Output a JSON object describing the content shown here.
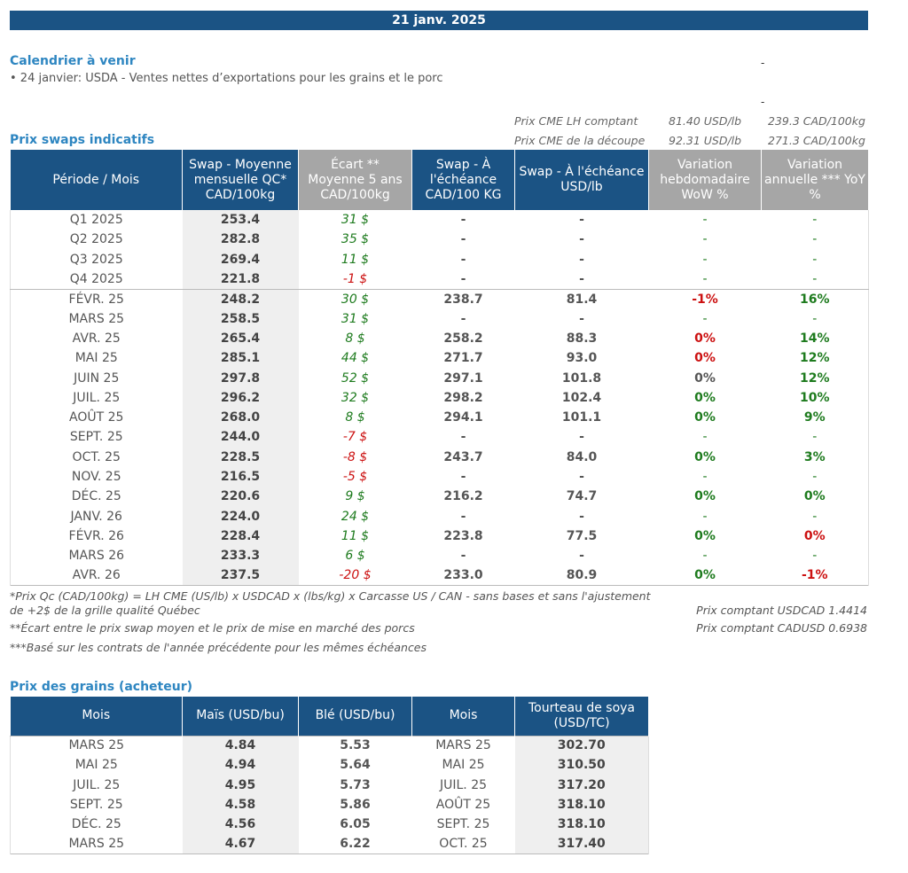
{
  "date": "21 janv. 2025",
  "calendar": {
    "title": "Calendrier à venir",
    "items": [
      "• 24 janvier: USDA - Ventes nettes d’exportations pour les grains et le porc"
    ]
  },
  "cme": [
    {
      "label": "Prix CME LH comptant",
      "usd": "81.40 USD/lb",
      "cad": "239.3 CAD/100kg"
    },
    {
      "label": "Prix CME de la découpe",
      "usd": "92.31 USD/lb",
      "cad": "271.3 CAD/100kg"
    }
  ],
  "swaps": {
    "title": "Prix swaps indicatifs",
    "headers": [
      "Période / Mois",
      "Swap - Moyenne mensuelle QC* CAD/100kg",
      "Écart ** Moyenne 5 ans CAD/100kg",
      "Swap - À l'échéance CAD/100 KG",
      "Swap - À l'échéance USD/lb",
      "Variation hebdomadaire WoW %",
      "Variation annuelle *** YoY %"
    ],
    "rows": [
      {
        "period": "Q1 2025",
        "swap": "253.4",
        "ecart": "31 $",
        "cad": "-",
        "usd": "-",
        "wow": "-",
        "yoy": "-"
      },
      {
        "period": "Q2 2025",
        "swap": "282.8",
        "ecart": "35 $",
        "cad": "-",
        "usd": "-",
        "wow": "-",
        "yoy": "-"
      },
      {
        "period": "Q3 2025",
        "swap": "269.4",
        "ecart": "11 $",
        "cad": "-",
        "usd": "-",
        "wow": "-",
        "yoy": "-"
      },
      {
        "period": "Q4 2025",
        "swap": "221.8",
        "ecart": "-1 $",
        "cad": "-",
        "usd": "-",
        "wow": "-",
        "yoy": "-"
      },
      {
        "period": "FÉVR. 25",
        "swap": "248.2",
        "ecart": "30 $",
        "cad": "238.7",
        "usd": "81.4",
        "wow": "-1%",
        "yoy": "16%"
      },
      {
        "period": "MARS 25",
        "swap": "258.5",
        "ecart": "31 $",
        "cad": "-",
        "usd": "-",
        "wow": "-",
        "yoy": "-"
      },
      {
        "period": "AVR. 25",
        "swap": "265.4",
        "ecart": "8 $",
        "cad": "258.2",
        "usd": "88.3",
        "wow": "0%",
        "yoy": "14%"
      },
      {
        "period": "MAI 25",
        "swap": "285.1",
        "ecart": "44 $",
        "cad": "271.7",
        "usd": "93.0",
        "wow": "0%",
        "yoy": "12%"
      },
      {
        "period": "JUIN 25",
        "swap": "297.8",
        "ecart": "52 $",
        "cad": "297.1",
        "usd": "101.8",
        "wow": "0%",
        "yoy": "12%"
      },
      {
        "period": "JUIL. 25",
        "swap": "296.2",
        "ecart": "32 $",
        "cad": "298.2",
        "usd": "102.4",
        "wow": "0%",
        "yoy": "10%"
      },
      {
        "period": "AOÛT 25",
        "swap": "268.0",
        "ecart": "8 $",
        "cad": "294.1",
        "usd": "101.1",
        "wow": "0%",
        "yoy": "9%"
      },
      {
        "period": "SEPT. 25",
        "swap": "244.0",
        "ecart": "-7 $",
        "cad": "-",
        "usd": "-",
        "wow": "-",
        "yoy": "-"
      },
      {
        "period": "OCT. 25",
        "swap": "228.5",
        "ecart": "-8 $",
        "cad": "243.7",
        "usd": "84.0",
        "wow": "0%",
        "yoy": "3%"
      },
      {
        "period": "NOV. 25",
        "swap": "216.5",
        "ecart": "-5 $",
        "cad": "-",
        "usd": "-",
        "wow": "-",
        "yoy": "-"
      },
      {
        "period": "DÉC. 25",
        "swap": "220.6",
        "ecart": "9 $",
        "cad": "216.2",
        "usd": "74.7",
        "wow": "0%",
        "yoy": "0%"
      },
      {
        "period": "JANV. 26",
        "swap": "224.0",
        "ecart": "24 $",
        "cad": "-",
        "usd": "-",
        "wow": "-",
        "yoy": "-"
      },
      {
        "period": "FÉVR. 26",
        "swap": "228.4",
        "ecart": "11 $",
        "cad": "223.8",
        "usd": "77.5",
        "wow": "0%",
        "yoy": "0%"
      },
      {
        "period": "MARS 26",
        "swap": "233.3",
        "ecart": "6 $",
        "cad": "-",
        "usd": "-",
        "wow": "-",
        "yoy": "-"
      },
      {
        "period": "AVR. 26",
        "swap": "237.5",
        "ecart": "-20 $",
        "cad": "233.0",
        "usd": "80.9",
        "wow": "0%",
        "yoy": "-1%"
      }
    ],
    "colors": {
      "wow": [
        "green",
        "green",
        "green",
        "green",
        "red",
        "green",
        "red",
        "red",
        "",
        "green",
        "green",
        "green",
        "green",
        "green",
        "green",
        "green",
        "green",
        "green",
        "green"
      ],
      "yoy": [
        "green",
        "green",
        "green",
        "green",
        "green",
        "green",
        "green",
        "green",
        "green",
        "green",
        "green",
        "green",
        "green",
        "green",
        "green",
        "green",
        "red",
        "green",
        "red"
      ]
    }
  },
  "footnotes": {
    "note1": "*Prix Qc (CAD/100kg) = LH CME (US/lb) x USDCAD x (lbs/kg) x Carcasse US / CAN - sans bases et sans l'ajustement de +2$ de la grille qualité Québec",
    "note2": "**Écart entre le prix swap moyen et le prix de mise en marché des porcs",
    "note3": "***Basé sur les contrats de l'année précédente pour les mêmes échéances",
    "usdcad": "Prix comptant USDCAD 1.4414",
    "cadusd": "Prix comptant CADUSD 0.6938"
  },
  "grains": {
    "title": "Prix des grains (acheteur)",
    "headers": [
      "Mois",
      "Maïs (USD/bu)",
      "Blé (USD/bu)",
      "Mois",
      "Tourteau de soya (USD/TC)"
    ],
    "rows": [
      {
        "m1": "MARS 25",
        "mais": "4.84",
        "ble": "5.53",
        "m2": "MARS 25",
        "soya": "302.70"
      },
      {
        "m1": "MAI 25",
        "mais": "4.94",
        "ble": "5.64",
        "m2": "MAI 25",
        "soya": "310.50"
      },
      {
        "m1": "JUIL. 25",
        "mais": "4.95",
        "ble": "5.73",
        "m2": "JUIL. 25",
        "soya": "317.20"
      },
      {
        "m1": "SEPT. 25",
        "mais": "4.58",
        "ble": "5.86",
        "m2": "AOÛT 25",
        "soya": "318.10"
      },
      {
        "m1": "DÉC. 25",
        "mais": "4.56",
        "ble": "6.05",
        "m2": "SEPT. 25",
        "soya": "318.10"
      },
      {
        "m1": "MARS 25",
        "mais": "4.67",
        "ble": "6.22",
        "m2": "OCT. 25",
        "soya": "317.40"
      }
    ]
  }
}
